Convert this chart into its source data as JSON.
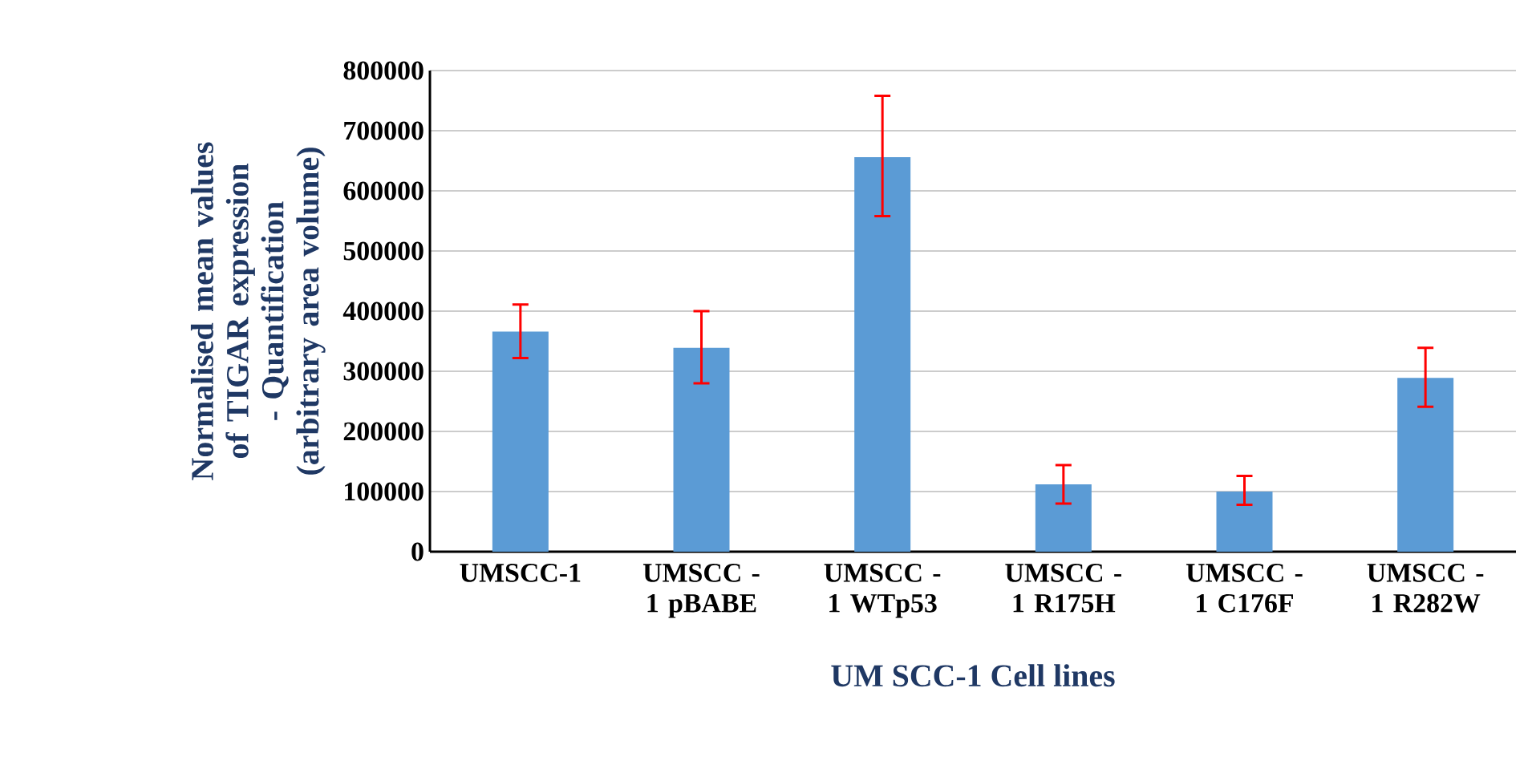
{
  "chart_data": {
    "type": "bar",
    "xlabel": "UM SCC-1 Cell lines",
    "ylabel": "Normalised mean values of TIGAR expression - Quantification (arbitrary area volume)",
    "categories": [
      "UMSCC-1",
      "UMSCC - 1 pBABE",
      "UMSCC - 1 WTp53",
      "UMSCC - 1 R175H",
      "UMSCC - 1 C176F",
      "UMSCC - 1 R282W"
    ],
    "values": [
      366000,
      339000,
      656000,
      112000,
      100000,
      289000
    ],
    "errors": [
      [
        322000,
        411000
      ],
      [
        280000,
        400000
      ],
      [
        558000,
        758000
      ],
      [
        80000,
        144000
      ],
      [
        78000,
        126000
      ],
      [
        241000,
        339000
      ]
    ],
    "color": "#5b9bd5",
    "ylim": [
      0,
      800000
    ],
    "yticks": [
      0,
      100000,
      200000,
      300000,
      400000,
      500000,
      600000,
      700000,
      800000
    ],
    "grid": "y"
  }
}
